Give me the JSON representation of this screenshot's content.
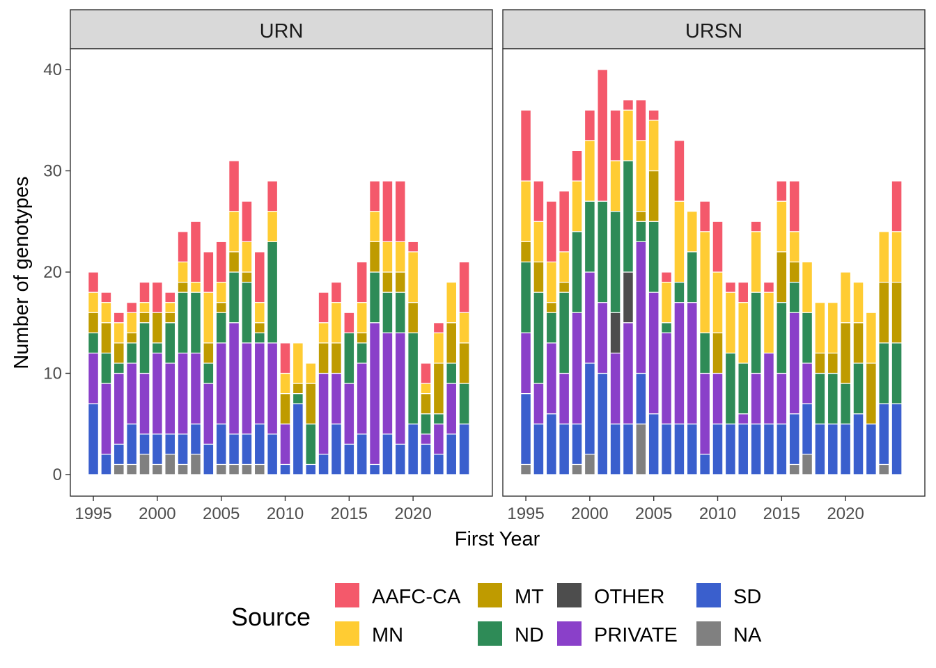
{
  "chart_data": {
    "type": "bar",
    "stacked": true,
    "xlabel": "First Year",
    "ylabel": "Number of genotypes",
    "ylim": [
      0,
      42
    ],
    "yticks": [
      0,
      10,
      20,
      30,
      40
    ],
    "xticks": [
      1995,
      2000,
      2005,
      2010,
      2015,
      2020
    ],
    "grid": false,
    "legend": {
      "title": "Source",
      "placement": "bottom",
      "entries": [
        "AAFC-CA",
        "MN",
        "MT",
        "ND",
        "OTHER",
        "PRIVATE",
        "SD",
        "NA"
      ]
    },
    "stack_order": [
      "NA",
      "SD",
      "PRIVATE",
      "OTHER",
      "ND",
      "MT",
      "MN",
      "AAFC-CA"
    ],
    "colors": {
      "AAFC-CA": "#F4596B",
      "MN": "#FFCC33",
      "MT": "#BF9B00",
      "ND": "#2E8B57",
      "OTHER": "#4D4D4D",
      "PRIVATE": "#8A40C9",
      "SD": "#3A5FCD",
      "NA": "#808080"
    },
    "panels": [
      {
        "name": "URN",
        "years": [
          1995,
          1996,
          1997,
          1998,
          1999,
          2000,
          2001,
          2002,
          2003,
          2004,
          2005,
          2006,
          2007,
          2008,
          2009,
          2010,
          2011,
          2012,
          2013,
          2014,
          2015,
          2016,
          2017,
          2018,
          2019,
          2020,
          2021,
          2022,
          2023,
          2024
        ],
        "series": {
          "NA": [
            0,
            0,
            1,
            1,
            2,
            1,
            2,
            1,
            2,
            0,
            1,
            1,
            1,
            1,
            0,
            0,
            0,
            0,
            0,
            0,
            0,
            0,
            0,
            0,
            0,
            0,
            0,
            0,
            0,
            0
          ],
          "SD": [
            7,
            2,
            2,
            4,
            2,
            3,
            2,
            3,
            3,
            3,
            4,
            3,
            3,
            4,
            4,
            1,
            7,
            1,
            2,
            5,
            3,
            4,
            1,
            4,
            3,
            5,
            3,
            2,
            4,
            5
          ],
          "PRIVATE": [
            5,
            7,
            7,
            6,
            6,
            8,
            7,
            8,
            7,
            6,
            8,
            11,
            9,
            8,
            9,
            4,
            0,
            0,
            8,
            5,
            6,
            7,
            14,
            10,
            11,
            0,
            1,
            3,
            5,
            0
          ],
          "OTHER": [
            0,
            0,
            0,
            0,
            0,
            0,
            0,
            0,
            0,
            0,
            0,
            0,
            0,
            0,
            0,
            0,
            0,
            0,
            0,
            0,
            0,
            0,
            0,
            0,
            0,
            0,
            0,
            0,
            0,
            0
          ],
          "ND": [
            2,
            3,
            1,
            2,
            5,
            1,
            4,
            6,
            6,
            2,
            3,
            5,
            6,
            1,
            10,
            0,
            1,
            4,
            0,
            0,
            5,
            2,
            5,
            4,
            4,
            9,
            2,
            1,
            2,
            4
          ],
          "MT": [
            2,
            3,
            2,
            1,
            1,
            3,
            1,
            1,
            0,
            2,
            1,
            2,
            1,
            1,
            0,
            3,
            1,
            4,
            3,
            3,
            0,
            1,
            3,
            2,
            2,
            3,
            2,
            5,
            4,
            4
          ],
          "MN": [
            2,
            2,
            2,
            2,
            1,
            0,
            1,
            2,
            1,
            5,
            2,
            4,
            3,
            2,
            3,
            2,
            4,
            2,
            2,
            4,
            0,
            3,
            3,
            3,
            3,
            5,
            1,
            3,
            4,
            3
          ],
          "AAFC-CA": [
            2,
            1,
            1,
            1,
            2,
            3,
            1,
            3,
            6,
            4,
            4,
            5,
            4,
            5,
            3,
            3,
            0,
            0,
            3,
            2,
            2,
            4,
            3,
            6,
            6,
            1,
            2,
            1,
            0,
            5
          ]
        }
      },
      {
        "name": "URSN",
        "years": [
          1995,
          1996,
          1997,
          1998,
          1999,
          2000,
          2001,
          2002,
          2003,
          2004,
          2005,
          2006,
          2007,
          2008,
          2009,
          2010,
          2011,
          2012,
          2013,
          2014,
          2015,
          2016,
          2017,
          2018,
          2019,
          2020,
          2021,
          2022,
          2023,
          2024
        ],
        "series": {
          "NA": [
            1,
            0,
            0,
            0,
            1,
            2,
            0,
            0,
            0,
            5,
            0,
            0,
            0,
            0,
            0,
            0,
            0,
            0,
            0,
            0,
            0,
            1,
            2,
            0,
            0,
            0,
            0,
            0,
            1,
            0
          ],
          "SD": [
            7,
            5,
            6,
            5,
            4,
            9,
            10,
            5,
            5,
            5,
            6,
            5,
            5,
            5,
            2,
            5,
            5,
            5,
            5,
            5,
            5,
            5,
            5,
            5,
            5,
            5,
            6,
            5,
            6,
            7
          ],
          "PRIVATE": [
            6,
            4,
            7,
            5,
            11,
            9,
            7,
            7,
            10,
            13,
            12,
            9,
            12,
            12,
            8,
            5,
            0,
            1,
            5,
            7,
            5,
            10,
            4,
            0,
            0,
            0,
            0,
            0,
            0,
            0
          ],
          "OTHER": [
            0,
            0,
            0,
            0,
            0,
            0,
            0,
            4,
            5,
            0,
            0,
            0,
            0,
            0,
            0,
            0,
            0,
            0,
            0,
            0,
            0,
            0,
            0,
            0,
            0,
            0,
            0,
            0,
            0,
            0
          ],
          "ND": [
            7,
            9,
            3,
            8,
            8,
            7,
            10,
            10,
            11,
            2,
            7,
            1,
            2,
            5,
            4,
            0,
            7,
            5,
            8,
            0,
            7,
            3,
            5,
            5,
            5,
            4,
            5,
            0,
            6,
            6
          ],
          "MT": [
            2,
            3,
            1,
            1,
            0,
            0,
            0,
            0,
            0,
            1,
            5,
            0,
            0,
            0,
            0,
            4,
            0,
            0,
            0,
            0,
            5,
            2,
            0,
            2,
            2,
            6,
            4,
            6,
            6,
            6
          ],
          "MN": [
            6,
            4,
            4,
            3,
            5,
            6,
            0,
            5,
            5,
            7,
            5,
            4,
            8,
            4,
            10,
            6,
            6,
            6,
            6,
            6,
            5,
            3,
            5,
            5,
            5,
            5,
            4,
            5,
            5,
            5
          ],
          "AAFC-CA": [
            7,
            4,
            6,
            6,
            3,
            3,
            13,
            5,
            1,
            4,
            1,
            1,
            6,
            0,
            3,
            5,
            1,
            2,
            1,
            1,
            2,
            5,
            0,
            0,
            0,
            0,
            0,
            0,
            0,
            5
          ]
        }
      }
    ]
  }
}
